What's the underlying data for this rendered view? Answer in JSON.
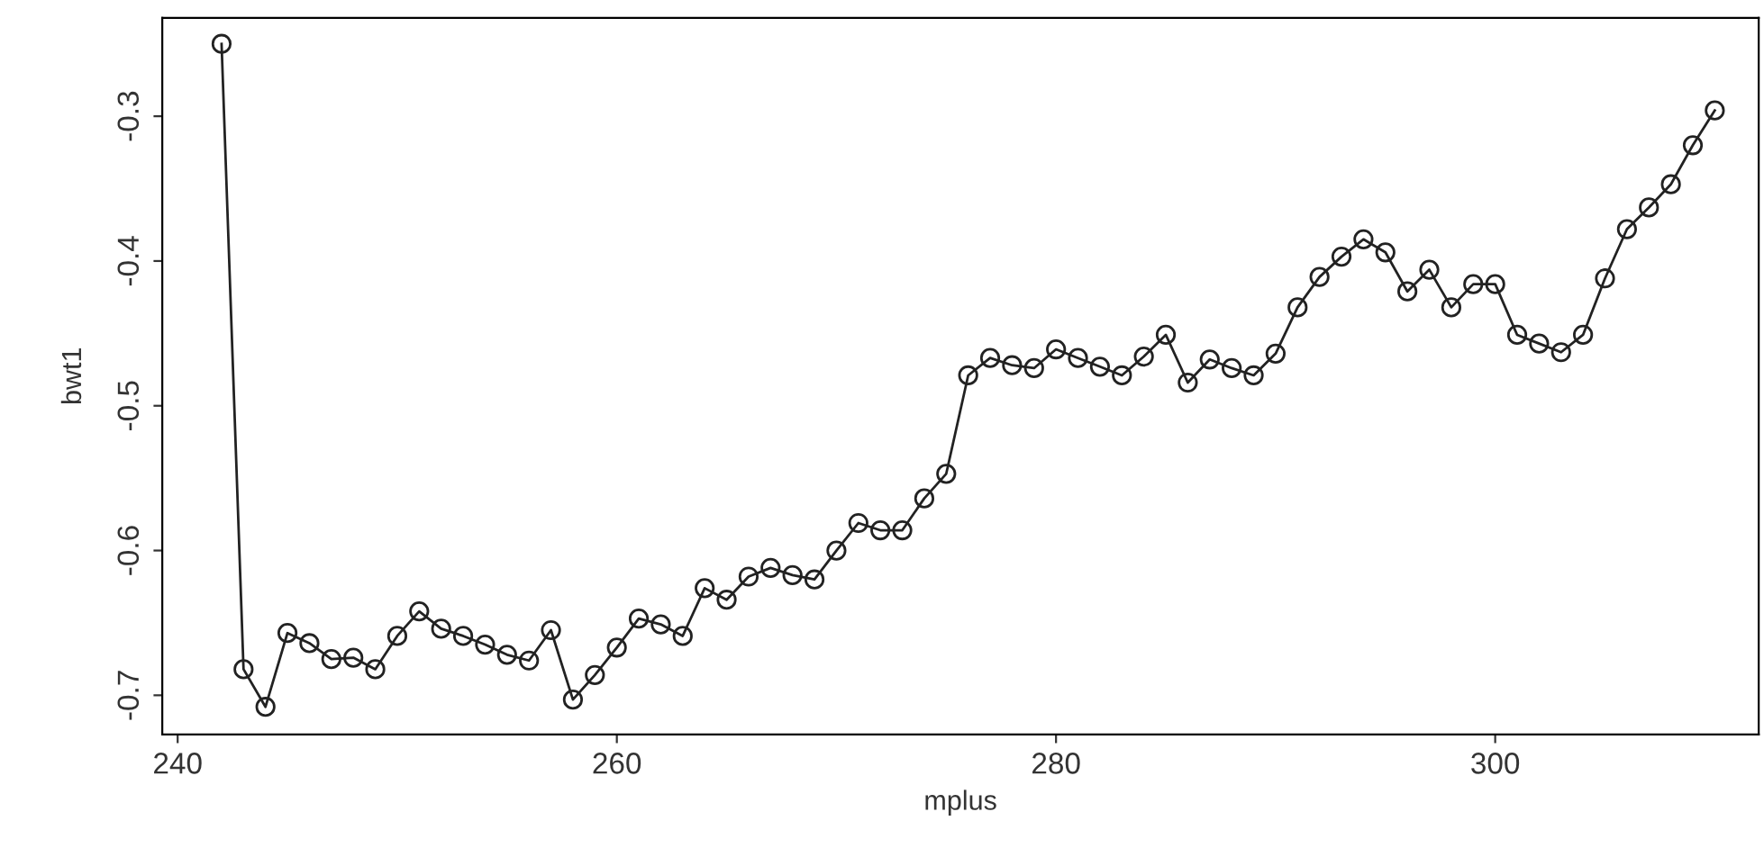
{
  "chart_data": {
    "type": "line",
    "xlabel": "mplus",
    "ylabel": "bwt1",
    "marker": "circle",
    "line_style": "solid",
    "grid": false,
    "legend": false,
    "xlim": [
      239.3,
      312.0
    ],
    "ylim": [
      -0.727,
      -0.232
    ],
    "xticks": [
      240,
      260,
      280,
      300
    ],
    "yticks": [
      -0.7,
      -0.6,
      -0.5,
      -0.4,
      -0.3
    ],
    "x": [
      242,
      243,
      244,
      245,
      246,
      247,
      248,
      249,
      250,
      251,
      252,
      253,
      254,
      255,
      256,
      257,
      258,
      259,
      260,
      261,
      262,
      263,
      264,
      265,
      266,
      267,
      268,
      269,
      270,
      271,
      272,
      273,
      274,
      275,
      276,
      277,
      278,
      279,
      280,
      281,
      282,
      283,
      284,
      285,
      286,
      287,
      288,
      289,
      290,
      291,
      292,
      293,
      294,
      295,
      296,
      297,
      298,
      299,
      300,
      301,
      302,
      303,
      304,
      305,
      306,
      307,
      308,
      309,
      310
    ],
    "series": [
      {
        "color": "#222222",
        "values": [
          -0.25,
          -0.682,
          -0.708,
          -0.657,
          -0.664,
          -0.675,
          -0.674,
          -0.682,
          -0.659,
          -0.642,
          -0.654,
          -0.659,
          -0.665,
          -0.672,
          -0.676,
          -0.655,
          -0.703,
          -0.686,
          -0.667,
          -0.647,
          -0.651,
          -0.659,
          -0.626,
          -0.634,
          -0.618,
          -0.612,
          -0.617,
          -0.62,
          -0.6,
          -0.581,
          -0.586,
          -0.586,
          -0.564,
          -0.547,
          -0.479,
          -0.467,
          -0.472,
          -0.474,
          -0.461,
          -0.467,
          -0.473,
          -0.479,
          -0.466,
          -0.451,
          -0.484,
          -0.468,
          -0.474,
          -0.479,
          -0.464,
          -0.432,
          -0.411,
          -0.397,
          -0.385,
          -0.394,
          -0.421,
          -0.406,
          -0.432,
          -0.416,
          -0.416,
          -0.451,
          -0.457,
          -0.463,
          -0.451,
          -0.412,
          -0.378,
          -0.363,
          -0.347,
          -0.32,
          -0.296
        ]
      }
    ]
  }
}
